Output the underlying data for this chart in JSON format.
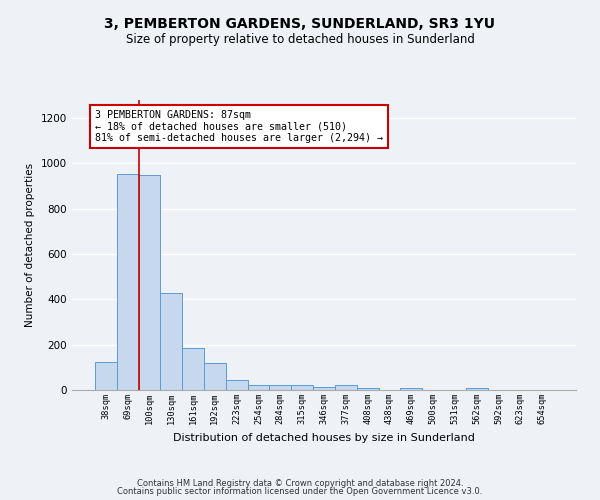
{
  "title": "3, PEMBERTON GARDENS, SUNDERLAND, SR3 1YU",
  "subtitle": "Size of property relative to detached houses in Sunderland",
  "xlabel": "Distribution of detached houses by size in Sunderland",
  "ylabel": "Number of detached properties",
  "bar_labels": [
    "38sqm",
    "69sqm",
    "100sqm",
    "130sqm",
    "161sqm",
    "192sqm",
    "223sqm",
    "254sqm",
    "284sqm",
    "315sqm",
    "346sqm",
    "377sqm",
    "408sqm",
    "438sqm",
    "469sqm",
    "500sqm",
    "531sqm",
    "562sqm",
    "592sqm",
    "623sqm",
    "654sqm"
  ],
  "bar_values": [
    125,
    955,
    950,
    430,
    185,
    120,
    45,
    20,
    20,
    20,
    15,
    20,
    10,
    0,
    10,
    0,
    0,
    10,
    0,
    0,
    0
  ],
  "bar_color": "#c5d8ed",
  "bar_edge_color": "#5b9bd5",
  "ylim": [
    0,
    1280
  ],
  "yticks": [
    0,
    200,
    400,
    600,
    800,
    1000,
    1200
  ],
  "annotation_text": "3 PEMBERTON GARDENS: 87sqm\n← 18% of detached houses are smaller (510)\n81% of semi-detached houses are larger (2,294) →",
  "vline_x_index": 1.5,
  "annotation_box_color": "#ffffff",
  "annotation_box_edge": "#cc0000",
  "footer1": "Contains HM Land Registry data © Crown copyright and database right 2024.",
  "footer2": "Contains public sector information licensed under the Open Government Licence v3.0.",
  "background_color": "#eef2f7",
  "grid_color": "#ffffff",
  "title_fontsize": 10,
  "subtitle_fontsize": 8.5
}
